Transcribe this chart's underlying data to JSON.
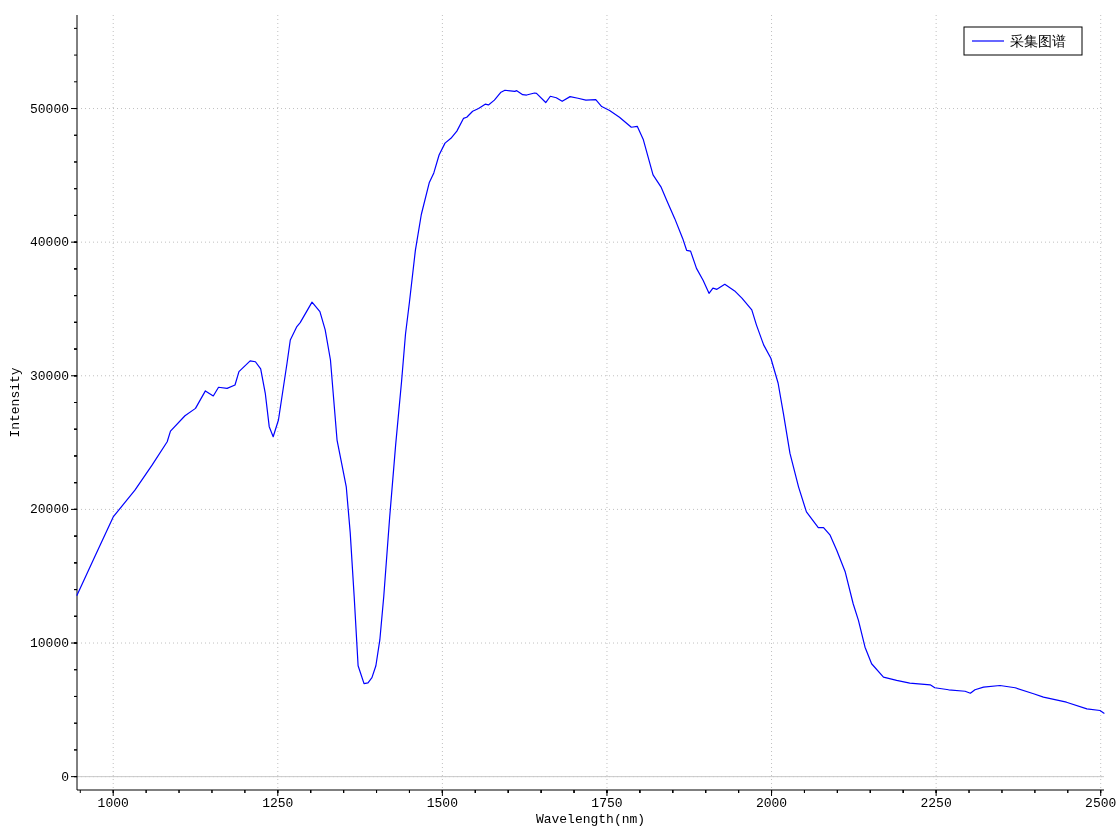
{
  "chart_data": {
    "type": "line",
    "xlabel": "Wavelength(nm)",
    "ylabel": "Intensity",
    "xlim": [
      945,
      2505
    ],
    "ylim": [
      -1000,
      57000
    ],
    "xticks": [
      1000,
      1250,
      1500,
      1750,
      2000,
      2250,
      2500
    ],
    "yticks": [
      0,
      10000,
      20000,
      30000,
      40000,
      50000
    ],
    "grid": true,
    "legend": "top right",
    "ref_lines": [
      {
        "axis": "y",
        "value": 0,
        "color": "#c8c8c8"
      }
    ],
    "series": [
      {
        "name": "采集图谱",
        "color": "#0000ff",
        "x": [
          945,
          973,
          1000,
          1033,
          1059,
          1082,
          1087,
          1109,
          1125,
          1140,
          1152,
          1160,
          1173,
          1185,
          1191,
          1208,
          1216,
          1224,
          1231,
          1237,
          1243,
          1251,
          1264,
          1269,
          1279,
          1284,
          1302,
          1314,
          1322,
          1330,
          1340,
          1347,
          1354,
          1360,
          1366,
          1372,
          1381,
          1387,
          1393,
          1399,
          1405,
          1411,
          1420,
          1429,
          1438,
          1444,
          1450,
          1459,
          1468,
          1480,
          1487,
          1495,
          1504,
          1513,
          1522,
          1532,
          1537,
          1546,
          1555,
          1565,
          1570,
          1579,
          1589,
          1595,
          1610,
          1613,
          1622,
          1628,
          1640,
          1643,
          1657,
          1664,
          1673,
          1682,
          1694,
          1706,
          1718,
          1733,
          1742,
          1754,
          1769,
          1787,
          1796,
          1805,
          1820,
          1832,
          1841,
          1853,
          1865,
          1871,
          1877,
          1886,
          1896,
          1905,
          1911,
          1917,
          1929,
          1944,
          1955,
          1970,
          1977,
          1988,
          1999,
          2010,
          2018,
          2028,
          2041,
          2053,
          2071,
          2079,
          2089,
          2099,
          2112,
          2124,
          2132,
          2142,
          2152,
          2170,
          2190,
          2210,
          2241,
          2248,
          2269,
          2294,
          2302,
          2309,
          2322,
          2347,
          2370,
          2398,
          2413,
          2448,
          2479,
          2499,
          2505
        ],
        "values": [
          13570,
          16570,
          19440,
          21440,
          23310,
          25060,
          25860,
          27010,
          27560,
          28870,
          28490,
          29140,
          29060,
          29310,
          30310,
          31120,
          31050,
          30510,
          28690,
          26190,
          25440,
          26690,
          30940,
          32680,
          33680,
          33980,
          35510,
          34800,
          33430,
          31180,
          25190,
          23440,
          21690,
          18260,
          13500,
          8300,
          6960,
          7020,
          7410,
          8300,
          10230,
          13500,
          19450,
          24810,
          29570,
          33130,
          35520,
          39390,
          42070,
          44440,
          45180,
          46520,
          47410,
          47770,
          48310,
          49260,
          49350,
          49800,
          50000,
          50330,
          50270,
          50630,
          51220,
          51370,
          51280,
          51340,
          51040,
          51010,
          51160,
          51130,
          50450,
          50920,
          50810,
          50540,
          50890,
          50770,
          50630,
          50660,
          50150,
          49850,
          49350,
          48600,
          48670,
          47710,
          45030,
          44140,
          43100,
          41760,
          40280,
          39390,
          39330,
          38040,
          37150,
          36170,
          36560,
          36470,
          36850,
          36350,
          35810,
          34930,
          33810,
          32310,
          31310,
          29440,
          27190,
          24190,
          21690,
          19810,
          18640,
          18640,
          18070,
          16940,
          15310,
          12940,
          11690,
          9690,
          8450,
          7450,
          7200,
          7000,
          6870,
          6650,
          6500,
          6390,
          6240,
          6500,
          6700,
          6820,
          6650,
          6200,
          5950,
          5570,
          5070,
          4950,
          4750
        ]
      }
    ]
  }
}
